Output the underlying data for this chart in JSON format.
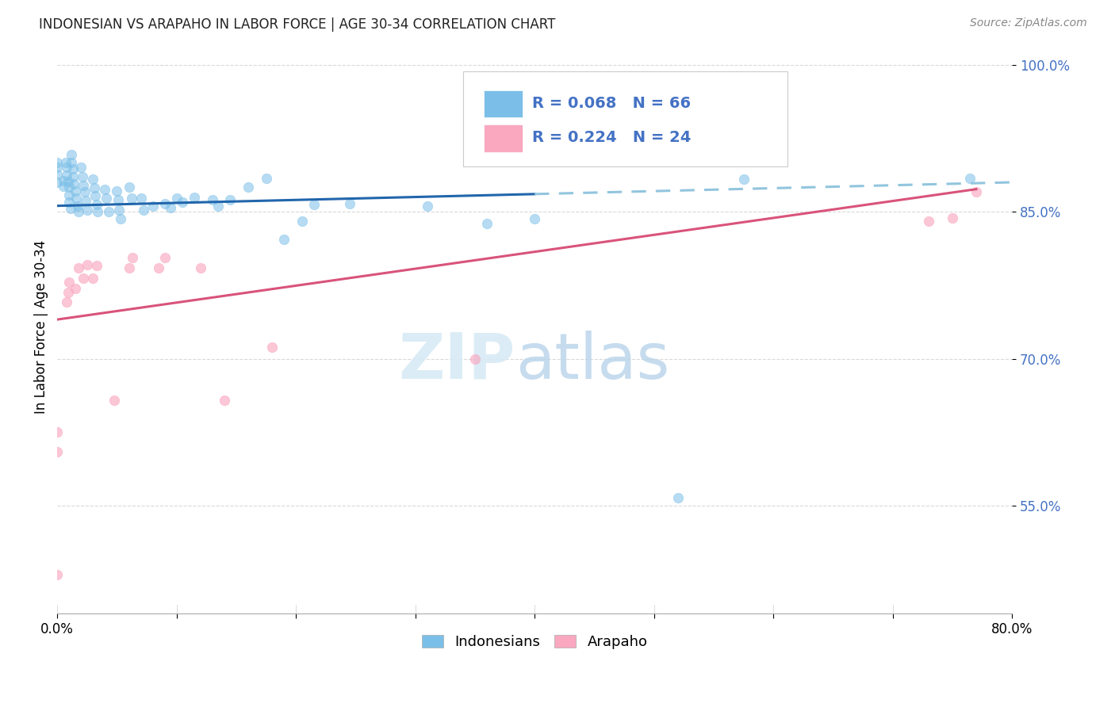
{
  "title": "INDONESIAN VS ARAPAHO IN LABOR FORCE | AGE 30-34 CORRELATION CHART",
  "source": "Source: ZipAtlas.com",
  "ylabel": "In Labor Force | Age 30-34",
  "watermark_zip": "ZIP",
  "watermark_atlas": "atlas",
  "xmin": 0.0,
  "xmax": 0.8,
  "ymin": 0.44,
  "ymax": 1.025,
  "yticks": [
    0.55,
    0.7,
    0.85,
    1.0
  ],
  "ytick_labels": [
    "55.0%",
    "70.0%",
    "85.0%",
    "100.0%"
  ],
  "blue_R": 0.068,
  "blue_N": 66,
  "pink_R": 0.224,
  "pink_N": 24,
  "blue_color": "#7BBFE8",
  "pink_color": "#F9A8C0",
  "trend_blue_color": "#2166ac",
  "trend_pink_color": "#d9537a",
  "trend_blue_dashed_color": "#92c5de",
  "legend_label_blue": "Indonesians",
  "legend_label_pink": "Arapaho",
  "blue_points_x": [
    0.0,
    0.0,
    0.0,
    0.0,
    0.005,
    0.005,
    0.007,
    0.008,
    0.008,
    0.009,
    0.01,
    0.01,
    0.01,
    0.011,
    0.012,
    0.012,
    0.013,
    0.013,
    0.014,
    0.015,
    0.016,
    0.017,
    0.018,
    0.02,
    0.021,
    0.022,
    0.023,
    0.024,
    0.025,
    0.03,
    0.031,
    0.032,
    0.033,
    0.034,
    0.04,
    0.041,
    0.043,
    0.05,
    0.051,
    0.052,
    0.053,
    0.06,
    0.062,
    0.07,
    0.072,
    0.08,
    0.09,
    0.095,
    0.1,
    0.105,
    0.115,
    0.13,
    0.135,
    0.145,
    0.16,
    0.175,
    0.19,
    0.205,
    0.215,
    0.245,
    0.31,
    0.36,
    0.4,
    0.52,
    0.575,
    0.765
  ],
  "blue_points_y": [
    0.88,
    0.888,
    0.895,
    0.9,
    0.882,
    0.876,
    0.9,
    0.895,
    0.887,
    0.881,
    0.875,
    0.867,
    0.86,
    0.853,
    0.908,
    0.9,
    0.894,
    0.886,
    0.878,
    0.871,
    0.864,
    0.856,
    0.85,
    0.895,
    0.886,
    0.877,
    0.87,
    0.861,
    0.852,
    0.883,
    0.874,
    0.866,
    0.857,
    0.85,
    0.873,
    0.864,
    0.85,
    0.871,
    0.862,
    0.852,
    0.843,
    0.875,
    0.864,
    0.864,
    0.852,
    0.856,
    0.858,
    0.854,
    0.864,
    0.86,
    0.865,
    0.862,
    0.856,
    0.862,
    0.875,
    0.884,
    0.822,
    0.84,
    0.857,
    0.858,
    0.856,
    0.838,
    0.843,
    0.558,
    0.883,
    0.884
  ],
  "pink_points_x": [
    0.0,
    0.0,
    0.0,
    0.008,
    0.009,
    0.01,
    0.015,
    0.018,
    0.022,
    0.025,
    0.03,
    0.033,
    0.048,
    0.06,
    0.063,
    0.085,
    0.09,
    0.12,
    0.14,
    0.18,
    0.35,
    0.73,
    0.75,
    0.77
  ],
  "pink_points_y": [
    0.48,
    0.605,
    0.625,
    0.758,
    0.768,
    0.778,
    0.772,
    0.793,
    0.782,
    0.796,
    0.782,
    0.795,
    0.658,
    0.793,
    0.803,
    0.793,
    0.803,
    0.793,
    0.658,
    0.712,
    0.7,
    0.84,
    0.844,
    0.87
  ],
  "blue_trend_x": [
    0.0,
    0.4
  ],
  "blue_trend_y": [
    0.856,
    0.868
  ],
  "blue_dashed_trend_x": [
    0.4,
    0.8
  ],
  "blue_dashed_trend_y": [
    0.868,
    0.88
  ],
  "pink_trend_x": [
    0.0,
    0.77
  ],
  "pink_trend_y": [
    0.74,
    0.873
  ],
  "grid_color": "#d0d0d0",
  "background_color": "#ffffff",
  "plot_bg_color": "#ffffff"
}
